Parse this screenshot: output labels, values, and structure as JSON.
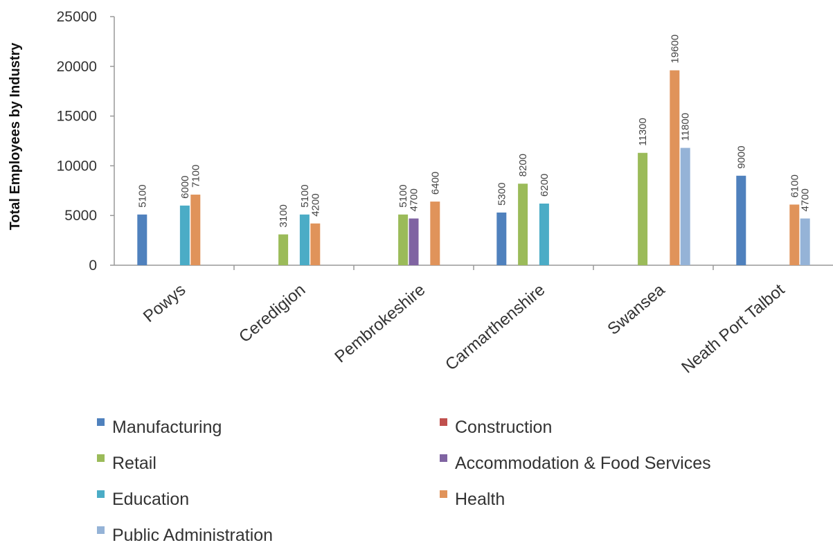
{
  "chart_data": {
    "type": "bar",
    "title": "",
    "xlabel": "",
    "ylabel": "Total Employees by Industry",
    "ylim": [
      0,
      25000
    ],
    "yticks": [
      0,
      5000,
      10000,
      15000,
      20000,
      25000
    ],
    "grid": false,
    "legend_position": "bottom",
    "categories": [
      "Powys",
      "Ceredigion",
      "Pembrokeshire",
      "Carmarthenshire",
      "Swansea",
      "Neath Port Talbot"
    ],
    "series": [
      {
        "name": "Manufacturing",
        "color": "#4f81bd",
        "values": [
          5100,
          null,
          null,
          5300,
          null,
          9000
        ]
      },
      {
        "name": "Construction",
        "color": "#c0504d",
        "values": [
          null,
          null,
          null,
          null,
          null,
          null
        ]
      },
      {
        "name": "Retail",
        "color": "#9bbb59",
        "values": [
          null,
          3100,
          5100,
          8200,
          11300,
          null
        ]
      },
      {
        "name": "Accommodation & Food Services",
        "color": "#8064a2",
        "values": [
          null,
          null,
          4700,
          null,
          null,
          null
        ]
      },
      {
        "name": "Education",
        "color": "#4bacc6",
        "values": [
          6000,
          5100,
          null,
          6200,
          null,
          null
        ]
      },
      {
        "name": "Health",
        "color": "#e0935a",
        "values": [
          7100,
          4200,
          6400,
          null,
          19600,
          6100
        ]
      },
      {
        "name": "Public Administration",
        "color": "#95b3d7",
        "values": [
          null,
          null,
          null,
          null,
          11800,
          4700
        ]
      }
    ]
  }
}
